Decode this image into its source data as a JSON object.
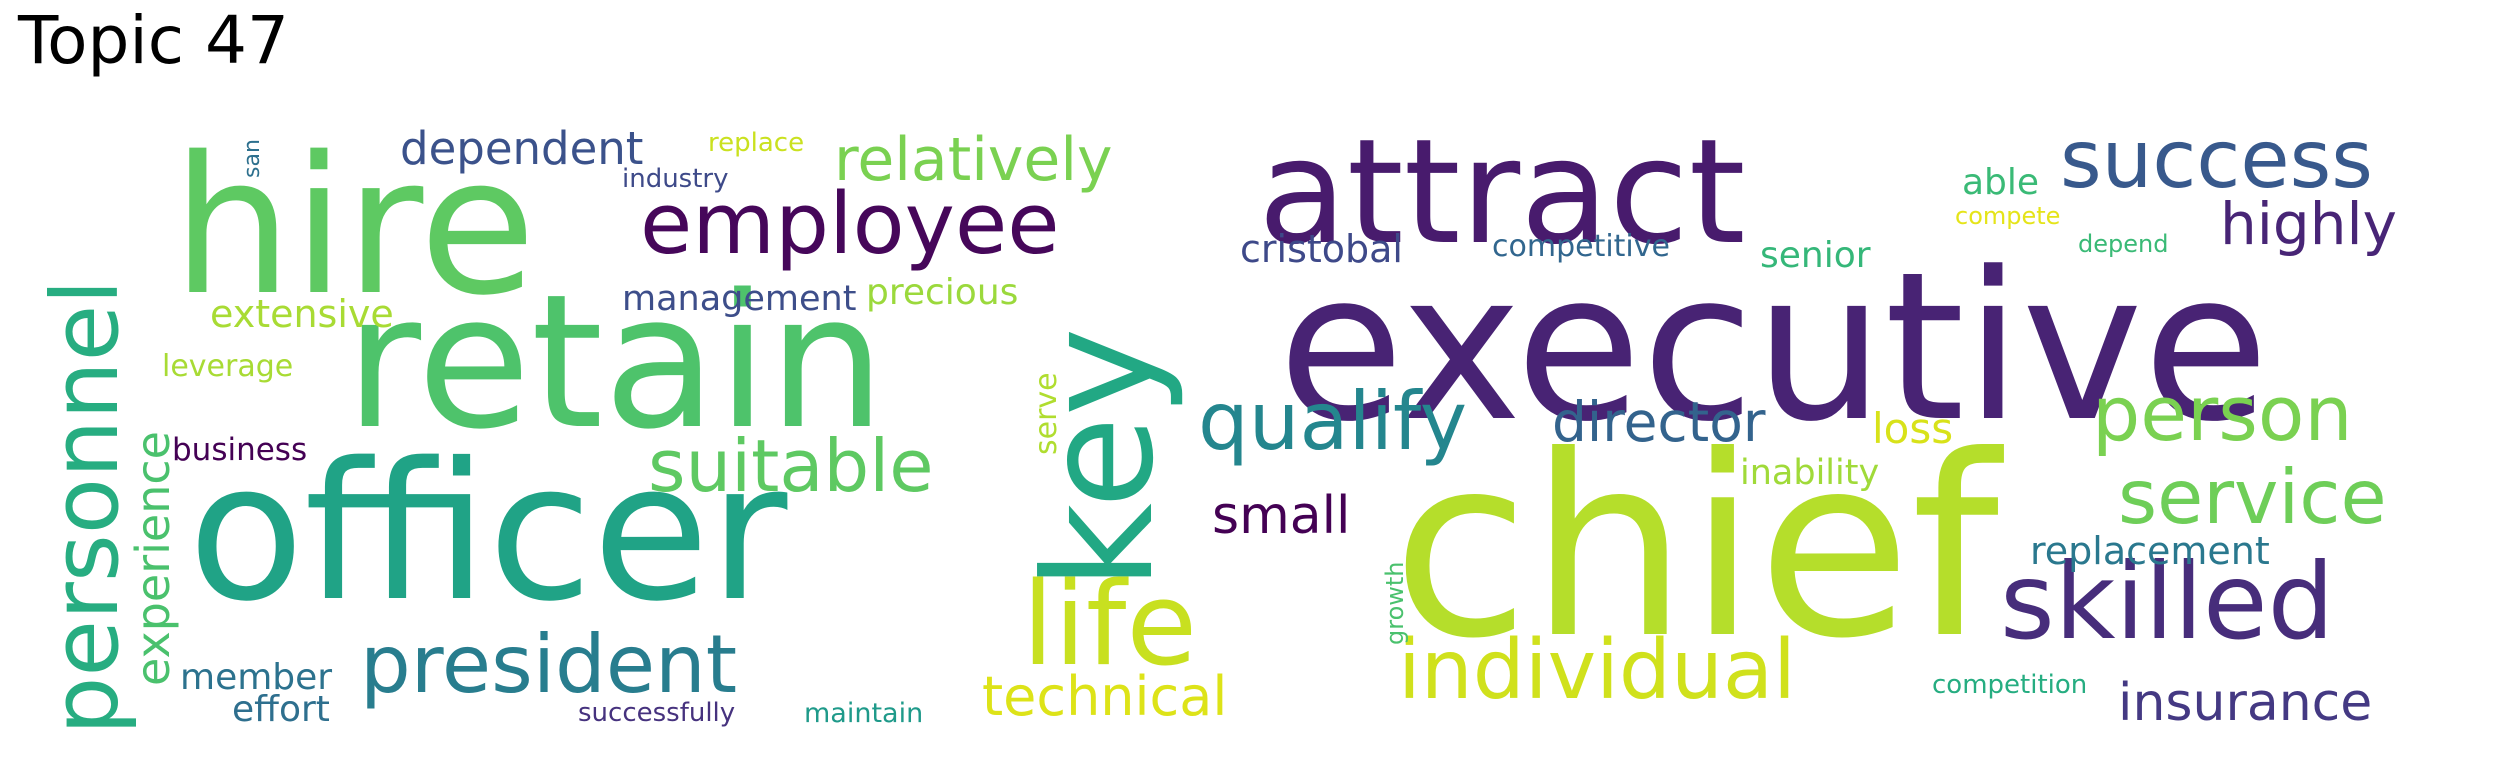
{
  "title": "Topic 47",
  "words": [
    {
      "id": "executive",
      "text": "executive",
      "color": "#482374"
    },
    {
      "id": "chief",
      "text": "chief",
      "color": "#b5de2b"
    },
    {
      "id": "officer",
      "text": "officer",
      "color": "#20a386"
    },
    {
      "id": "retain",
      "text": "retain",
      "color": "#4ec36b"
    },
    {
      "id": "hire",
      "text": "hire",
      "color": "#5ec962"
    },
    {
      "id": "attract",
      "text": "attract",
      "color": "#481b6d"
    },
    {
      "id": "key",
      "text": "key",
      "color": "#22a884"
    },
    {
      "id": "personnel",
      "text": "personnel",
      "color": "#27ad81"
    },
    {
      "id": "skilled",
      "text": "skilled",
      "color": "#472d7b"
    },
    {
      "id": "success",
      "text": "success",
      "color": "#38598c"
    },
    {
      "id": "individual",
      "text": "individual",
      "color": "#d0e11c"
    },
    {
      "id": "life",
      "text": "life",
      "color": "#c8e020"
    },
    {
      "id": "employee",
      "text": "employee",
      "color": "#46075a"
    },
    {
      "id": "president",
      "text": "president",
      "color": "#287d8e"
    },
    {
      "id": "person",
      "text": "person",
      "color": "#7ad151"
    },
    {
      "id": "service",
      "text": "service",
      "color": "#6ece58"
    },
    {
      "id": "qualify",
      "text": "qualify",
      "color": "#24868e"
    },
    {
      "id": "suitable",
      "text": "suitable",
      "color": "#5ec962"
    },
    {
      "id": "relatively",
      "text": "relatively",
      "color": "#7ad151"
    },
    {
      "id": "technical",
      "text": "technical",
      "color": "#dde318"
    },
    {
      "id": "highly",
      "text": "highly",
      "color": "#482576"
    },
    {
      "id": "insurance",
      "text": "insurance",
      "color": "#443983"
    },
    {
      "id": "director",
      "text": "director",
      "color": "#33638d"
    },
    {
      "id": "dependent",
      "text": "dependent",
      "color": "#3b528b"
    },
    {
      "id": "experience",
      "text": "experience",
      "color": "#4ac16d"
    },
    {
      "id": "small",
      "text": "small",
      "color": "#440154"
    },
    {
      "id": "replacement",
      "text": "replacement",
      "color": "#2a788e"
    },
    {
      "id": "cristobal",
      "text": "cristobal",
      "color": "#3e4989"
    },
    {
      "id": "loss",
      "text": "loss",
      "color": "#d8e219"
    },
    {
      "id": "management",
      "text": "management",
      "color": "#3d4e8a"
    },
    {
      "id": "extensive",
      "text": "extensive",
      "color": "#a8db34"
    },
    {
      "id": "precious",
      "text": "precious",
      "color": "#9bd93c"
    },
    {
      "id": "senior",
      "text": "senior",
      "color": "#35b779"
    },
    {
      "id": "inability",
      "text": "inability",
      "color": "#a0da39"
    },
    {
      "id": "able",
      "text": "able",
      "color": "#3aba76"
    },
    {
      "id": "member",
      "text": "member",
      "color": "#2c728e"
    },
    {
      "id": "effort",
      "text": "effort",
      "color": "#2e6f8e"
    },
    {
      "id": "competitive",
      "text": "competitive",
      "color": "#31668e"
    },
    {
      "id": "business",
      "text": "business",
      "color": "#440154"
    },
    {
      "id": "serve",
      "text": "serve",
      "color": "#b0dd2f"
    },
    {
      "id": "leverage",
      "text": "leverage",
      "color": "#a8db34"
    },
    {
      "id": "industry",
      "text": "industry",
      "color": "#3e4a89"
    },
    {
      "id": "replace",
      "text": "replace",
      "color": "#cae11f"
    },
    {
      "id": "successfully",
      "text": "successfully",
      "color": "#46327e"
    },
    {
      "id": "maintain",
      "text": "maintain",
      "color": "#1f9a8a"
    },
    {
      "id": "competition",
      "text": "competition",
      "color": "#26ad81"
    },
    {
      "id": "compete",
      "text": "compete",
      "color": "#e5e419"
    },
    {
      "id": "depend",
      "text": "depend",
      "color": "#3aba76"
    },
    {
      "id": "growth",
      "text": "growth",
      "color": "#4ac16d"
    },
    {
      "id": "san",
      "text": "san",
      "color": "#2d708e"
    }
  ]
}
